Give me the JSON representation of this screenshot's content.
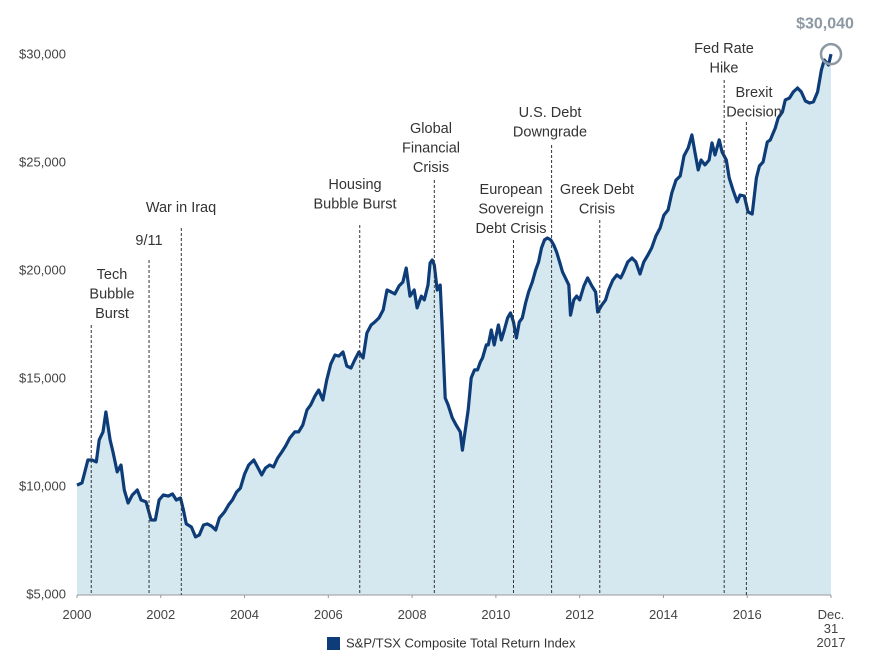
{
  "chart_data": {
    "type": "area",
    "x": [
      2000.0,
      2000.12,
      2000.26,
      2000.36,
      2000.46,
      2000.53,
      2000.62,
      2000.69,
      2000.79,
      2000.86,
      2000.96,
      2001.05,
      2001.13,
      2001.22,
      2001.32,
      2001.44,
      2001.53,
      2001.65,
      2001.77,
      2001.87,
      2001.96,
      2002.06,
      2002.18,
      2002.28,
      2002.37,
      2002.47,
      2002.54,
      2002.61,
      2002.73,
      2002.83,
      2002.92,
      2003.02,
      2003.11,
      2003.21,
      2003.31,
      2003.4,
      2003.52,
      2003.62,
      2003.71,
      2003.81,
      2003.9,
      2004.0,
      2004.1,
      2004.22,
      2004.31,
      2004.41,
      2004.5,
      2004.6,
      2004.69,
      2004.79,
      2004.89,
      2004.98,
      2005.08,
      2005.2,
      2005.29,
      2005.39,
      2005.49,
      2005.58,
      2005.68,
      2005.77,
      2005.87,
      2005.96,
      2006.06,
      2006.16,
      2006.25,
      2006.35,
      2006.44,
      2006.54,
      2006.63,
      2006.73,
      2006.83,
      2006.92,
      2007.02,
      2007.11,
      2007.21,
      2007.31,
      2007.4,
      2007.5,
      2007.59,
      2007.69,
      2007.78,
      2007.86,
      2007.95,
      2008.05,
      2008.12,
      2008.22,
      2008.29,
      2008.38,
      2008.43,
      2008.48,
      2008.53,
      2008.6,
      2008.67,
      2008.72,
      2008.79,
      2008.86,
      2008.96,
      2009.05,
      2009.15,
      2009.2,
      2009.27,
      2009.34,
      2009.41,
      2009.49,
      2009.56,
      2009.63,
      2009.68,
      2009.77,
      2009.82,
      2009.89,
      2009.96,
      2010.01,
      2010.06,
      2010.13,
      2010.2,
      2010.28,
      2010.35,
      2010.42,
      2010.49,
      2010.56,
      2010.63,
      2010.71,
      2010.78,
      2010.87,
      2010.95,
      2011.02,
      2011.09,
      2011.16,
      2011.23,
      2011.31,
      2011.38,
      2011.45,
      2011.52,
      2011.59,
      2011.66,
      2011.74,
      2011.78,
      2011.86,
      2011.93,
      2012.0,
      2012.1,
      2012.19,
      2012.29,
      2012.38,
      2012.43,
      2012.53,
      2012.62,
      2012.69,
      2012.79,
      2012.89,
      2012.98,
      2013.05,
      2013.15,
      2013.25,
      2013.34,
      2013.44,
      2013.53,
      2013.63,
      2013.72,
      2013.82,
      2013.92,
      2014.01,
      2014.11,
      2014.2,
      2014.3,
      2014.4,
      2014.49,
      2014.59,
      2014.68,
      2014.75,
      2014.83,
      2014.9,
      2014.99,
      2015.09,
      2015.16,
      2015.23,
      2015.33,
      2015.4,
      2015.5,
      2015.57,
      2015.66,
      2015.76,
      2015.83,
      2015.93,
      2016.02,
      2016.12,
      2016.22,
      2016.29,
      2016.38,
      2016.48,
      2016.55,
      2016.67,
      2016.74,
      2016.84,
      2016.91,
      2017.01,
      2017.1,
      2017.2,
      2017.29,
      2017.39,
      2017.49,
      2017.58,
      2017.68,
      2017.77,
      2017.84,
      2017.94,
      2018.0
    ],
    "series": [
      {
        "name": "S&P/TSX Composite Total Return Index",
        "color": "#0d3c78",
        "fill": "#d5e8f0",
        "values": [
          10090,
          10190,
          11250,
          11250,
          11160,
          12180,
          12550,
          13470,
          12180,
          11620,
          10700,
          11020,
          9860,
          9260,
          9630,
          9860,
          9400,
          9310,
          8470,
          8470,
          9400,
          9630,
          9580,
          9680,
          9400,
          9490,
          8940,
          8290,
          8150,
          7690,
          7780,
          8240,
          8290,
          8190,
          8010,
          8570,
          8840,
          9170,
          9400,
          9770,
          9950,
          10600,
          11020,
          11250,
          10930,
          10560,
          10880,
          11020,
          10930,
          11340,
          11620,
          11900,
          12270,
          12550,
          12550,
          12870,
          13570,
          13800,
          14210,
          14490,
          14030,
          14950,
          15700,
          16110,
          16060,
          16250,
          15600,
          15510,
          15880,
          16250,
          15970,
          17130,
          17500,
          17640,
          17830,
          18200,
          19120,
          19030,
          18940,
          19310,
          19490,
          20140,
          18840,
          19120,
          18290,
          18840,
          18660,
          19350,
          20370,
          20510,
          20280,
          19120,
          19350,
          17270,
          14120,
          13800,
          13200,
          12870,
          12550,
          11710,
          12640,
          13570,
          15050,
          15420,
          15420,
          15790,
          15970,
          16580,
          16580,
          17270,
          16580,
          17040,
          17500,
          16810,
          17270,
          17830,
          18060,
          17640,
          16900,
          17640,
          17830,
          18520,
          19030,
          19490,
          20050,
          20420,
          21070,
          21440,
          21530,
          21440,
          21210,
          20880,
          20420,
          19960,
          19680,
          19350,
          17960,
          18660,
          18840,
          18660,
          19310,
          19680,
          19310,
          19030,
          18100,
          18430,
          18660,
          19120,
          19580,
          19820,
          19680,
          19960,
          20420,
          20600,
          20420,
          19860,
          20420,
          20740,
          21070,
          21620,
          21990,
          22590,
          22830,
          23610,
          24210,
          24400,
          25330,
          25700,
          26300,
          25510,
          24680,
          25140,
          24910,
          25140,
          25930,
          25370,
          26070,
          25510,
          25140,
          24310,
          23750,
          23200,
          23520,
          23470,
          22730,
          22640,
          24310,
          24860,
          25050,
          25970,
          26070,
          26620,
          27090,
          27360,
          27920,
          28010,
          28290,
          28470,
          28290,
          27870,
          27780,
          27830,
          28290,
          29310,
          29770,
          29540,
          30040
        ],
        "value_labels": [
          null,
          null,
          null,
          null,
          null,
          null,
          null,
          null,
          null,
          null,
          null,
          null,
          null,
          null,
          null,
          null,
          null,
          null,
          null,
          null,
          null,
          null,
          null,
          null,
          null,
          null,
          null,
          null,
          null,
          null,
          null,
          null,
          null,
          null,
          null,
          null,
          null,
          null,
          null,
          null,
          null,
          null,
          null,
          null,
          null,
          null,
          null,
          null,
          null,
          null,
          null,
          null,
          null,
          null,
          null,
          null,
          null,
          null,
          null,
          null,
          null,
          null,
          null,
          null,
          null,
          null,
          null,
          null,
          null,
          null,
          null,
          null,
          null,
          null,
          null,
          null,
          null,
          null,
          null,
          null,
          null,
          null,
          null,
          null,
          null,
          null,
          null,
          null,
          null,
          null,
          null,
          null,
          null,
          null,
          null,
          null,
          null,
          null,
          null,
          null,
          null,
          null,
          null,
          null,
          null,
          null,
          null,
          null,
          null,
          null,
          null,
          null,
          null,
          null,
          null,
          null,
          null,
          null,
          null,
          null,
          null,
          null,
          null,
          null,
          null,
          null,
          null,
          null,
          null,
          null,
          null,
          null,
          null,
          null,
          null,
          null,
          null,
          null,
          null,
          null,
          null,
          null,
          null,
          null,
          null,
          null,
          null,
          null,
          null,
          null,
          null,
          null,
          null,
          null,
          null,
          null,
          null,
          null,
          null,
          null,
          null,
          null,
          null,
          null,
          null,
          null,
          null,
          null,
          null,
          null,
          null,
          null,
          null,
          null,
          null,
          null,
          null,
          null,
          null,
          null,
          null,
          null,
          null,
          null,
          null,
          null,
          null,
          null,
          null,
          null,
          null,
          null,
          null,
          null,
          null,
          null,
          null,
          null,
          null,
          null,
          null,
          null,
          null,
          null,
          null,
          null,
          "$30,040"
        ]
      }
    ],
    "xlim": [
      2000,
      2018
    ],
    "xticks": [
      2000,
      2002,
      2004,
      2006,
      2008,
      2010,
      2012,
      2014,
      2016,
      {
        "value": 2018,
        "label": "Dec. 31 2017"
      }
    ],
    "ylim": [
      5000,
      30000
    ],
    "yticks": [
      {
        "value": 5000,
        "label": "$5,000"
      },
      {
        "value": 10000,
        "label": "$10,000"
      },
      {
        "value": 15000,
        "label": "$15,000"
      },
      {
        "value": 20000,
        "label": "$20,000"
      },
      {
        "value": 25000,
        "label": "$25,000"
      },
      {
        "value": 30000,
        "label": "$30,000"
      }
    ],
    "grid": false,
    "legend": "bottom",
    "annotations": [
      {
        "lines": [
          "Tech",
          "Bubble",
          "Burst"
        ],
        "x": 2000.34
      },
      {
        "lines": [
          "9/11"
        ],
        "x": 2001.72
      },
      {
        "lines": [
          "War in Iraq"
        ],
        "x": 2002.49
      },
      {
        "lines": [
          "Housing",
          "Bubble Burst"
        ],
        "x": 2006.75
      },
      {
        "lines": [
          "Global",
          "Financial",
          "Crisis"
        ],
        "x": 2008.53
      },
      {
        "lines": [
          "European",
          "Sovereign",
          "Debt Crisis"
        ],
        "x": 2010.42
      },
      {
        "lines": [
          "U.S. Debt",
          "Downgrade"
        ],
        "x": 2011.33
      },
      {
        "lines": [
          "Greek Debt",
          "Crisis"
        ],
        "x": 2012.48
      },
      {
        "lines": [
          "Fed Rate",
          "Hike"
        ],
        "x": 2015.45
      },
      {
        "lines": [
          "Brexit",
          "Decision"
        ],
        "x": 2015.98
      }
    ]
  }
}
